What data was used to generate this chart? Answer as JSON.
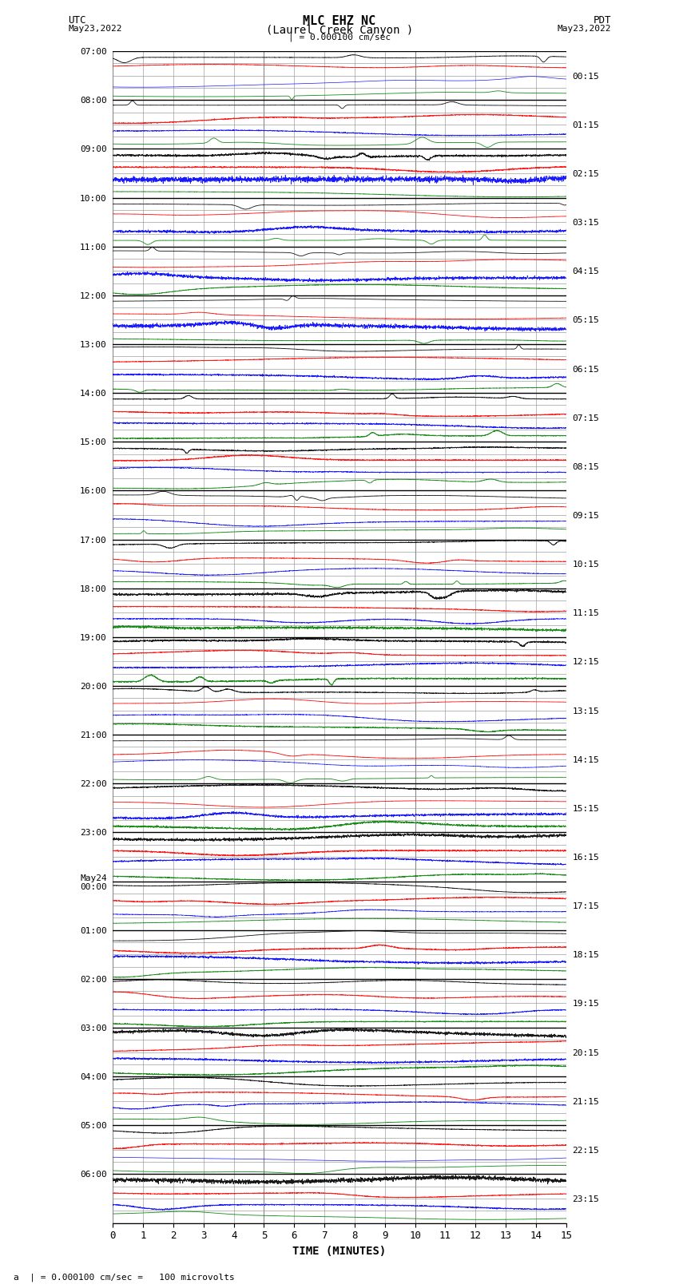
{
  "title_line1": "MLC EHZ NC",
  "title_line2": "(Laurel Creek Canyon )",
  "left_label": "UTC",
  "left_date": "May23,2022",
  "right_label": "PDT",
  "right_date": "May23,2022",
  "scale_text": "| = 0.000100 cm/sec",
  "scale_text2": "a  | = 0.000100 cm/sec =   100 microvolts",
  "xlabel": "TIME (MINUTES)",
  "xmin": 0,
  "xmax": 15,
  "xticks": [
    0,
    1,
    2,
    3,
    4,
    5,
    6,
    7,
    8,
    9,
    10,
    11,
    12,
    13,
    14,
    15
  ],
  "num_hours": 24,
  "channels_per_hour": 4,
  "left_times": [
    "07:00",
    "08:00",
    "09:00",
    "10:00",
    "11:00",
    "12:00",
    "13:00",
    "14:00",
    "15:00",
    "16:00",
    "17:00",
    "18:00",
    "19:00",
    "20:00",
    "21:00",
    "22:00",
    "23:00",
    "May24\n00:00",
    "01:00",
    "02:00",
    "03:00",
    "04:00",
    "05:00",
    "06:00"
  ],
  "right_times": [
    "00:15",
    "01:15",
    "02:15",
    "03:15",
    "04:15",
    "05:15",
    "06:15",
    "07:15",
    "08:15",
    "09:15",
    "10:15",
    "11:15",
    "12:15",
    "13:15",
    "14:15",
    "15:15",
    "16:15",
    "17:15",
    "18:15",
    "19:15",
    "20:15",
    "21:15",
    "22:15",
    "23:15"
  ],
  "bg_color": "#ffffff",
  "major_grid_color": "#000000",
  "minor_grid_color": "#888888",
  "vert_grid_color": "#888888",
  "trace_colors_order": [
    "black",
    "red",
    "blue",
    "green"
  ]
}
